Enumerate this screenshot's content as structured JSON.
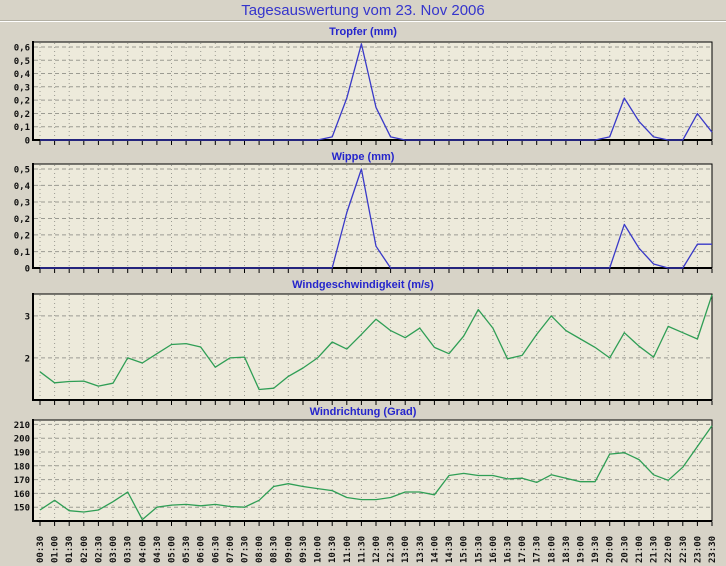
{
  "page_title": "Tagesauswertung vom 23. Nov 2006",
  "colors": {
    "page_bg": "#d7d3c7",
    "plot_bg": "#edeadb",
    "grid": "#9b9b92",
    "axis": "#000000",
    "main_title_blue": "#3535cc",
    "chart_title_blue": "#2525cc",
    "rain_line_blue": "#3939c8",
    "wind_line_green": "#2f9e55",
    "tick_label_color": "#111111"
  },
  "chart_data": {
    "layout_note": "four stacked line charts sharing one half-hourly time axis; x tick labels shown only under the bottom chart, rotated 90 degrees",
    "grid": "dashed gray, vertical line per time step, horizontal line per y tick",
    "categories": [
      "00:30",
      "01:00",
      "01:30",
      "02:00",
      "02:30",
      "03:00",
      "03:30",
      "04:00",
      "04:30",
      "05:00",
      "05:30",
      "06:00",
      "06:30",
      "07:00",
      "07:30",
      "08:00",
      "08:30",
      "09:00",
      "09:30",
      "10:00",
      "10:30",
      "11:00",
      "11:30",
      "12:00",
      "12:30",
      "13:00",
      "13:30",
      "14:00",
      "14:30",
      "15:00",
      "15:30",
      "16:00",
      "16:30",
      "17:00",
      "17:30",
      "18:00",
      "18:30",
      "19:00",
      "19:30",
      "20:00",
      "20:30",
      "21:00",
      "21:30",
      "22:00",
      "22:30",
      "23:00",
      "23:30"
    ],
    "charts": [
      {
        "type": "line",
        "title": "Tropfer (mm)",
        "color": "#3939c8",
        "ymin": 0,
        "ymax": 0.632,
        "ylabels": [
          {
            "text": "0,6",
            "v": 0.6
          },
          {
            "text": "0,5",
            "v": 0.514
          },
          {
            "text": "0,4",
            "v": 0.429
          },
          {
            "text": "0,3",
            "v": 0.343
          },
          {
            "text": "0,2",
            "v": 0.257
          },
          {
            "text": "0,2",
            "v": 0.171
          },
          {
            "text": "0,1",
            "v": 0.086
          },
          {
            "text": "0",
            "v": 0
          }
        ],
        "x_labels_shown": false,
        "values": [
          0,
          0,
          0,
          0,
          0,
          0,
          0,
          0,
          0,
          0,
          0,
          0,
          0,
          0,
          0,
          0,
          0,
          0,
          0,
          0,
          0.02,
          0.27,
          0.62,
          0.21,
          0.02,
          0,
          0,
          0,
          0,
          0,
          0,
          0,
          0,
          0,
          0,
          0,
          0,
          0,
          0,
          0.02,
          0.27,
          0.12,
          0.02,
          0,
          0,
          0.17,
          0.05
        ]
      },
      {
        "type": "line",
        "title": "Wippe (mm)",
        "color": "#3939c8",
        "ymin": 0,
        "ymax": 0.525,
        "ylabels": [
          {
            "text": "0,5",
            "v": 0.5
          },
          {
            "text": "0,4",
            "v": 0.417
          },
          {
            "text": "0,3",
            "v": 0.333
          },
          {
            "text": "0,2",
            "v": 0.25
          },
          {
            "text": "0,2",
            "v": 0.167
          },
          {
            "text": "0,1",
            "v": 0.083
          },
          {
            "text": "0",
            "v": 0
          }
        ],
        "x_labels_shown": false,
        "values": [
          0,
          0,
          0,
          0,
          0,
          0,
          0,
          0,
          0,
          0,
          0,
          0,
          0,
          0,
          0,
          0,
          0,
          0,
          0,
          0,
          0,
          0.28,
          0.5,
          0.11,
          0,
          0,
          0,
          0,
          0,
          0,
          0,
          0,
          0,
          0,
          0,
          0,
          0,
          0,
          0,
          0,
          0.22,
          0.1,
          0.02,
          0,
          0,
          0.12,
          0.12
        ]
      },
      {
        "type": "line",
        "title": "Windgeschwindigkeit (m/s)",
        "color": "#2f9e55",
        "ymin": 1.0,
        "ymax": 3.52,
        "ylabels": [
          {
            "text": "3",
            "v": 3
          },
          {
            "text": "2",
            "v": 2
          }
        ],
        "x_labels_shown": false,
        "values": [
          1.67,
          1.41,
          1.44,
          1.45,
          1.33,
          1.4,
          2.0,
          1.88,
          2.1,
          2.32,
          2.34,
          2.26,
          1.78,
          2.0,
          2.02,
          1.25,
          1.28,
          1.56,
          1.76,
          2.0,
          2.38,
          2.21,
          2.56,
          2.92,
          2.65,
          2.48,
          2.71,
          2.25,
          2.1,
          2.52,
          3.15,
          2.71,
          1.98,
          2.06,
          2.56,
          3.0,
          2.65,
          2.45,
          2.25,
          2.0,
          2.6,
          2.28,
          2.02,
          2.75,
          2.6,
          2.45,
          3.5
        ]
      },
      {
        "type": "line",
        "title": "Windrichtung (Grad)",
        "color": "#2f9e55",
        "ymin": 140,
        "ymax": 213.2,
        "ylabels": [
          {
            "text": "210",
            "v": 210
          },
          {
            "text": "200",
            "v": 200
          },
          {
            "text": "190",
            "v": 190
          },
          {
            "text": "180",
            "v": 180
          },
          {
            "text": "170",
            "v": 170
          },
          {
            "text": "160",
            "v": 160
          },
          {
            "text": "150",
            "v": 150
          }
        ],
        "x_labels_shown": true,
        "values": [
          148,
          155,
          147.5,
          146.5,
          148,
          154,
          161,
          141,
          150,
          151.5,
          152,
          151,
          152,
          150.5,
          150,
          155,
          165,
          167,
          165,
          163.5,
          162,
          157,
          155.5,
          155.5,
          157,
          161,
          161,
          159,
          173,
          174.5,
          173,
          173,
          170.5,
          171,
          168,
          173.5,
          171,
          168.5,
          168.5,
          188.5,
          189.5,
          184.5,
          173.5,
          169.5,
          179,
          194,
          209
        ]
      }
    ]
  }
}
